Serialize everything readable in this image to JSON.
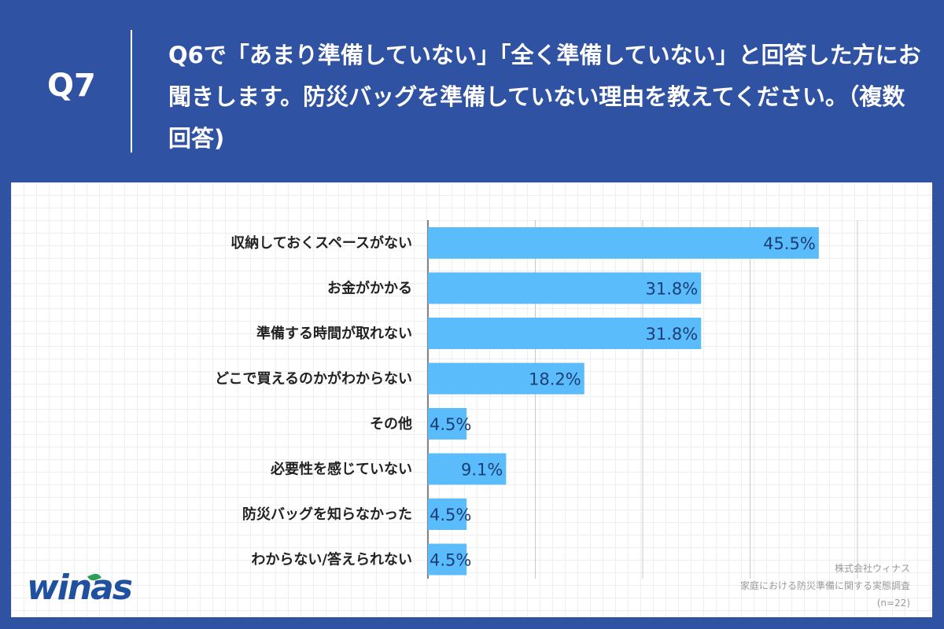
{
  "header": {
    "q_label": "Q7",
    "question": "Q6で「あまり準備していない」「全く準備していない」と回答した方にお聞きします。防災バッグを準備していない理由を教えてください。（複数回答)"
  },
  "colors": {
    "background": "#3052a3",
    "bar": "#5bbcfb",
    "value_text": "#1b3e75",
    "logo": "#2051a0"
  },
  "logo": {
    "text": "winas"
  },
  "source": {
    "company": "株式会社ウィナス",
    "survey": "家庭における防災準備に関する実態調査",
    "n": "(n=22)"
  },
  "chart_data": {
    "type": "bar",
    "orientation": "horizontal",
    "categories": [
      "収納しておくスペースがない",
      "お金がかかる",
      "準備する時間が取れない",
      "どこで買えるのかがわからない",
      "その他",
      "必要性を感じていない",
      "防災バッグを知らなかった",
      "わからない/答えられない"
    ],
    "values": [
      45.5,
      31.8,
      31.8,
      18.2,
      4.5,
      9.1,
      4.5,
      4.5
    ],
    "value_labels": [
      "45.5%",
      "31.8%",
      "31.8%",
      "18.2%",
      "4.5%",
      "9.1%",
      "4.5%",
      "4.5%"
    ],
    "xlim": [
      0,
      50
    ],
    "grid_lines": [
      0,
      12.5,
      25,
      37.5,
      50
    ],
    "grid": true,
    "legend": false
  }
}
